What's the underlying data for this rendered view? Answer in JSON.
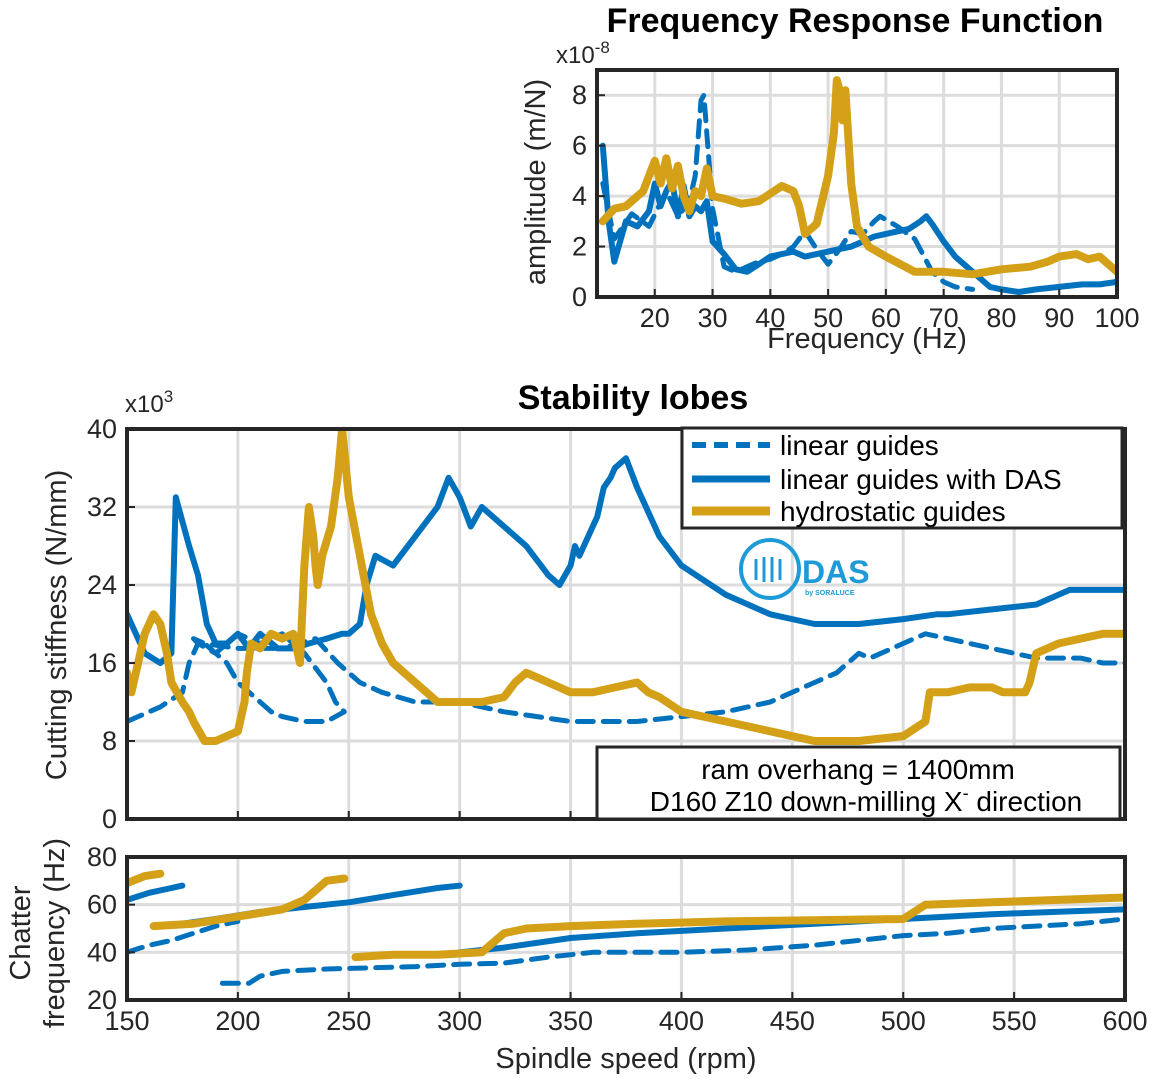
{
  "colors": {
    "blue": "#0072BD",
    "gold": "#D4A017",
    "das_blue": "#1E9BD7"
  },
  "logo": {
    "text": "DAS",
    "subtext": "by SORALUCE"
  },
  "chart_data": [
    {
      "id": "frf",
      "type": "line",
      "title": "Frequency Response Function",
      "xlabel": "Frequency (Hz)",
      "ylabel": "amplitude (m/N)",
      "y_multiplier": "x10",
      "y_multiplier_exp": "-8",
      "xlim": [
        10,
        100
      ],
      "ylim": [
        0,
        9
      ],
      "xticks": [
        20,
        30,
        40,
        50,
        60,
        70,
        80,
        90,
        100
      ],
      "yticks": [
        0,
        2,
        4,
        6,
        8
      ],
      "grid": true,
      "series": [
        {
          "style": "dashed-blue",
          "x": [
            11,
            13,
            16,
            19,
            22,
            24,
            26,
            27,
            28,
            28.5,
            29,
            30,
            32,
            34,
            36,
            38,
            40,
            42,
            44,
            46,
            48,
            50,
            52,
            54,
            56,
            58,
            59,
            62,
            65,
            68,
            70,
            72,
            75
          ],
          "y": [
            4.5,
            2.3,
            3.3,
            2.8,
            4.2,
            3.2,
            3.8,
            4.8,
            7.8,
            8.0,
            6.5,
            3.5,
            1.2,
            1.0,
            1.2,
            1.4,
            1.5,
            1.7,
            2.0,
            2.6,
            1.9,
            1.3,
            1.9,
            2.6,
            2.5,
            3.0,
            3.2,
            2.8,
            2.3,
            1.0,
            0.6,
            0.4,
            0.3
          ]
        },
        {
          "style": "solid-blue",
          "x": [
            11,
            12,
            13,
            15,
            17,
            19,
            20,
            21,
            22,
            23,
            24,
            25,
            26,
            27,
            28,
            29,
            30,
            32,
            34,
            36,
            38,
            40,
            42,
            44,
            46,
            48,
            50,
            52,
            54,
            56,
            58,
            60,
            62,
            64,
            66,
            67,
            68,
            70,
            72,
            75,
            78,
            80,
            83,
            86,
            90,
            94,
            97,
            100
          ],
          "y": [
            6.0,
            3.0,
            1.4,
            3.0,
            2.8,
            3.4,
            4.5,
            3.6,
            4.2,
            4.6,
            3.2,
            4.4,
            3.2,
            3.6,
            3.4,
            3.8,
            2.2,
            1.7,
            1.1,
            1.0,
            1.3,
            1.6,
            1.7,
            1.8,
            1.6,
            1.7,
            1.8,
            1.9,
            2.0,
            2.2,
            2.4,
            2.5,
            2.6,
            2.7,
            3.0,
            3.2,
            2.9,
            2.2,
            1.6,
            1.0,
            0.4,
            0.3,
            0.2,
            0.3,
            0.4,
            0.5,
            0.5,
            0.6
          ]
        },
        {
          "style": "solid-gold",
          "x": [
            11,
            13,
            15,
            18,
            20,
            21,
            22,
            23,
            24,
            25,
            26,
            27,
            28,
            29,
            30,
            32,
            35,
            38,
            40,
            42,
            44,
            45,
            46,
            48,
            50,
            51,
            51.5,
            52,
            52.5,
            53,
            54,
            55,
            57,
            60,
            65,
            70,
            75,
            80,
            85,
            88,
            90,
            93,
            95,
            97,
            100
          ],
          "y": [
            3.0,
            3.5,
            3.6,
            4.2,
            5.4,
            4.5,
            5.5,
            4.3,
            5.2,
            4.0,
            3.4,
            4.2,
            4.0,
            5.1,
            4.0,
            3.9,
            3.7,
            3.8,
            4.1,
            4.4,
            4.2,
            3.6,
            2.5,
            2.9,
            4.8,
            6.5,
            8.6,
            8.2,
            7.0,
            8.2,
            4.5,
            2.8,
            2.0,
            1.6,
            1.0,
            1.0,
            0.9,
            1.1,
            1.2,
            1.4,
            1.6,
            1.7,
            1.5,
            1.6,
            1.0
          ]
        }
      ]
    },
    {
      "id": "stability",
      "type": "line",
      "title": "Stability lobes",
      "xlabel": "",
      "ylabel": "Cutting stiffness (N/mm)",
      "y_multiplier": "x10",
      "y_multiplier_exp": "3",
      "xlim": [
        150,
        600
      ],
      "ylim": [
        0,
        40
      ],
      "xticks": [
        150,
        200,
        250,
        300,
        350,
        400,
        450,
        500,
        550,
        600
      ],
      "yticks": [
        0,
        8,
        16,
        24,
        32,
        40
      ],
      "grid": true,
      "legend": {
        "position": "top-right",
        "entries": [
          "linear guides",
          "linear guides with DAS",
          "hydrostatic guides"
        ]
      },
      "annotation": {
        "line1": "ram overhang = 1400mm",
        "line2": "D160 Z10 down-milling X",
        "line2_sup": "-",
        "line2_end": " direction"
      },
      "series": [
        {
          "name": "linear guides",
          "style": "dashed-blue",
          "x": [
            150,
            165,
            175,
            178,
            182,
            190,
            200,
            210,
            220,
            230,
            240,
            244,
            248,
            248,
            240,
            230,
            220,
            215,
            210,
            200,
            195,
            190,
            185,
            182,
            180,
            185,
            200,
            220,
            235,
            245,
            255,
            265,
            280,
            300,
            320,
            350,
            380,
            400,
            420,
            440,
            460,
            470,
            475,
            480,
            485,
            490,
            495,
            500,
            505,
            510,
            520,
            530,
            540,
            550,
            560,
            570,
            580,
            590,
            600
          ],
          "y": [
            10,
            11.5,
            13,
            16,
            18,
            17,
            19,
            18,
            19,
            17,
            14,
            12,
            11,
            11,
            10,
            10,
            10.5,
            11,
            12,
            14,
            16,
            17,
            18,
            18,
            18.5,
            18,
            17.5,
            17.5,
            18.5,
            16,
            14,
            13,
            12,
            12,
            11,
            10,
            10,
            10.5,
            11,
            12,
            14,
            15,
            16,
            17,
            16.5,
            17,
            17.5,
            18,
            18.5,
            19,
            18.5,
            18,
            17.5,
            17,
            16.5,
            16.5,
            16.5,
            16,
            16
          ]
        },
        {
          "name": "linear guides with DAS",
          "style": "solid-blue",
          "x": [
            150,
            158,
            165,
            170,
            172,
            178,
            182,
            186,
            190,
            195,
            200,
            205,
            210,
            218,
            225,
            232,
            240,
            247,
            250,
            255,
            258,
            262,
            270,
            280,
            290,
            295,
            300,
            305,
            310,
            320,
            330,
            340,
            345,
            350,
            352,
            354,
            358,
            362,
            365,
            368,
            370,
            375,
            380,
            390,
            400,
            420,
            440,
            460,
            480,
            500,
            515,
            520,
            540,
            560,
            575,
            580,
            585,
            590,
            595,
            600
          ],
          "y": [
            21,
            17,
            16,
            17,
            33,
            28,
            25,
            20,
            18,
            18,
            19,
            17.5,
            19,
            17.5,
            17.5,
            18,
            18.5,
            19,
            19,
            20,
            24,
            27,
            26,
            29,
            32,
            35,
            33,
            30,
            32,
            30,
            28,
            25,
            24,
            26,
            28,
            27,
            29,
            31,
            34,
            35,
            36,
            37,
            34,
            29,
            26,
            23,
            21,
            20,
            20,
            20.5,
            21,
            21,
            21.5,
            22,
            23.5,
            23.5,
            23.5,
            23.5,
            23.5,
            23.5
          ]
        },
        {
          "name": "hydrostatic guides",
          "style": "solid-gold",
          "x": [
            150,
            152,
            155,
            158,
            162,
            165,
            168,
            170,
            175,
            178,
            180,
            185,
            190,
            195,
            200,
            203,
            204,
            206,
            210,
            215,
            220,
            225,
            228,
            230,
            232,
            234,
            235,
            236,
            238,
            242,
            245,
            247,
            250,
            255,
            260,
            265,
            270,
            280,
            290,
            300,
            310,
            320,
            325,
            330,
            335,
            340,
            350,
            360,
            370,
            380,
            385,
            390,
            400,
            420,
            440,
            460,
            480,
            500,
            510,
            512,
            515,
            520,
            530,
            540,
            545,
            550,
            555,
            557,
            560,
            570,
            580,
            590,
            600
          ],
          "y": [
            15,
            13,
            16,
            19,
            21,
            20,
            17,
            14,
            12,
            11,
            10,
            8,
            8,
            8.5,
            9,
            12,
            15,
            18,
            17.5,
            19,
            18.5,
            19,
            16,
            26,
            32,
            29,
            26,
            24,
            27,
            30,
            35,
            40,
            33,
            27,
            21,
            18,
            16,
            14,
            12,
            12,
            12,
            12.5,
            14,
            15,
            14.5,
            14,
            13,
            13,
            13.5,
            14,
            13,
            12.5,
            11,
            10,
            9,
            8,
            8,
            8.5,
            10,
            13,
            13,
            13,
            13.5,
            13.5,
            13,
            13,
            13,
            14,
            17,
            18,
            18.5,
            19,
            19
          ]
        }
      ]
    },
    {
      "id": "chatter",
      "type": "line",
      "title": "",
      "xlabel": "Spindle speed (rpm)",
      "ylabel_line1": "Chatter",
      "ylabel_line2": "frequency (Hz)",
      "xlim": [
        150,
        600
      ],
      "ylim": [
        20,
        80
      ],
      "xticks": [
        150,
        200,
        250,
        300,
        350,
        400,
        450,
        500,
        550,
        600
      ],
      "yticks": [
        20,
        40,
        60,
        80
      ],
      "grid": true,
      "series": [
        {
          "style": "dashed-blue",
          "segments": [
            {
              "x": [
                150,
                160,
                170,
                180,
                190,
                200
              ],
              "y": [
                40,
                43,
                45,
                48,
                51,
                53
              ]
            },
            {
              "x": [
                193,
                205,
                210,
                220,
                240,
                260,
                280,
                300,
                320,
                340,
                360,
                380,
                400,
                430,
                460,
                480,
                500,
                520,
                540,
                560,
                580,
                600
              ],
              "y": [
                27,
                27,
                30,
                32,
                33,
                33.5,
                34,
                35,
                35.5,
                38,
                40,
                40,
                40,
                41,
                43,
                45,
                47,
                48,
                50,
                51,
                52,
                54
              ]
            }
          ]
        },
        {
          "style": "solid-blue",
          "segments": [
            {
              "x": [
                150,
                160,
                170,
                175
              ],
              "y": [
                62,
                65,
                67,
                68
              ]
            },
            {
              "x": [
                175,
                190,
                210,
                230,
                250,
                270,
                290,
                300
              ],
              "y": [
                52,
                54,
                57,
                59,
                61,
                64,
                67,
                68
              ]
            },
            {
              "x": [
                300,
                320,
                350,
                380,
                420,
                460,
                500,
                540,
                570,
                600
              ],
              "y": [
                40,
                42,
                46,
                48,
                50,
                52,
                54,
                56,
                57,
                58
              ]
            }
          ]
        },
        {
          "style": "solid-gold",
          "segments": [
            {
              "x": [
                150,
                158,
                165
              ],
              "y": [
                69,
                72,
                73
              ]
            },
            {
              "x": [
                162,
                180,
                200,
                220,
                230,
                235,
                240,
                248
              ],
              "y": [
                51,
                52,
                55,
                58,
                62,
                66,
                70,
                71
              ]
            },
            {
              "x": [
                253,
                270,
                290,
                310,
                315,
                320,
                330,
                350,
                380,
                420,
                460,
                500,
                510,
                540,
                570,
                600
              ],
              "y": [
                38,
                39,
                39,
                40,
                44,
                48,
                50,
                51,
                52,
                53,
                53.5,
                54,
                60,
                61,
                62,
                63
              ]
            }
          ]
        }
      ]
    }
  ]
}
